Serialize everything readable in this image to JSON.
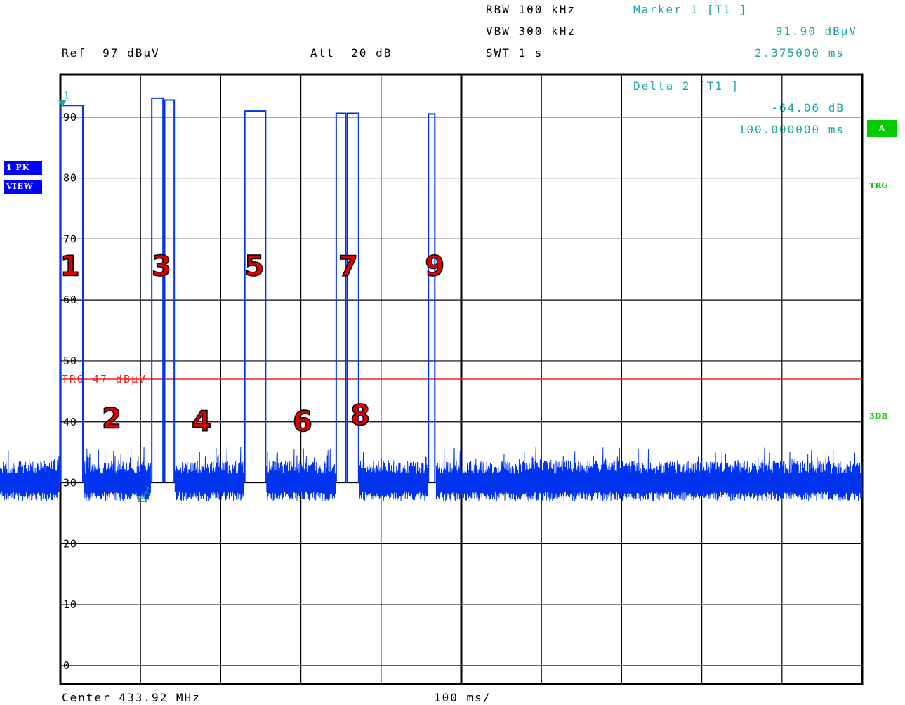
{
  "header": {
    "rbw": "RBW 100 kHz",
    "vbw": "VBW 300 kHz",
    "swt": "SWT 1 s",
    "ref": "Ref  97 dBµV",
    "att": "Att  20 dB",
    "marker_title": "Marker 1 [T1 ]",
    "marker_level": "91.90 dBµV",
    "marker_time": "2.375000 ms",
    "delta_title": "Delta 2 [T1 ]",
    "delta_level": "-64.06 dB",
    "delta_time": "100.000000 ms"
  },
  "side": {
    "pk": "1 PK",
    "view": "VIEW"
  },
  "right": {
    "a": "A",
    "trg": "TRG",
    "db3": "3DB"
  },
  "footer": {
    "center": "Center 433.92 MHz",
    "div": "100 ms/"
  },
  "colors": {
    "trace": "#0033ee",
    "trigger": "#ee2222",
    "marker": "#1fa5a5",
    "grid": "#000000",
    "number_fill": "#dd0000"
  },
  "chart_data": {
    "type": "line",
    "x_unit": "ms",
    "xlim": [
      0,
      1000
    ],
    "ylim": [
      -3,
      97
    ],
    "y_ticks": [
      0,
      10,
      20,
      30,
      40,
      50,
      60,
      70,
      80,
      90
    ],
    "y_tick_labels": [
      "0",
      "10",
      "20",
      "30",
      "40",
      "50",
      "60",
      "70",
      "80",
      "90"
    ],
    "trigger_level": 47,
    "trigger_label": "TRG 47 dBµV",
    "noise_floor": 31,
    "series": [
      {
        "pulses": [
          {
            "start": 0,
            "end": 28,
            "level": 91.9
          },
          {
            "start": 114,
            "end": 128,
            "level": 93.1
          },
          {
            "start": 130,
            "end": 142,
            "level": 92.8
          },
          {
            "start": 230,
            "end": 256,
            "level": 91.0
          },
          {
            "start": 344,
            "end": 356,
            "level": 90.6
          },
          {
            "start": 358,
            "end": 372,
            "level": 90.6
          },
          {
            "start": 459,
            "end": 467,
            "level": 90.5
          }
        ]
      }
    ],
    "markers": [
      {
        "label": "1",
        "x": 2.375,
        "y": 91.9
      },
      {
        "label": "2",
        "x": 102.375,
        "y": 27.84
      }
    ],
    "annotations": [
      {
        "text": "1",
        "x": 12,
        "y": 64
      },
      {
        "text": "2",
        "x": 64,
        "y": 39
      },
      {
        "text": "3",
        "x": 126,
        "y": 64
      },
      {
        "text": "4",
        "x": 176,
        "y": 38.5
      },
      {
        "text": "5",
        "x": 242,
        "y": 64
      },
      {
        "text": "6",
        "x": 302,
        "y": 38.5
      },
      {
        "text": "7",
        "x": 359,
        "y": 64
      },
      {
        "text": "8",
        "x": 374,
        "y": 39.5
      },
      {
        "text": "9",
        "x": 467,
        "y": 64
      }
    ]
  }
}
